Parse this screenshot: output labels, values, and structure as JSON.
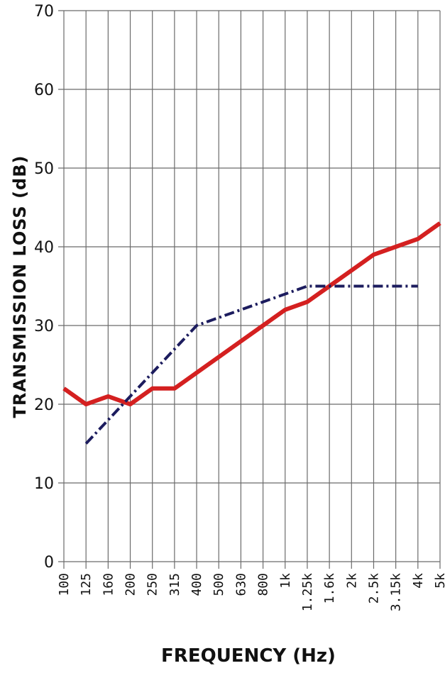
{
  "chart_data": {
    "type": "line",
    "xlabel": "FREQUENCY (Hz)",
    "ylabel": "TRANSMISSION LOSS (dB)",
    "ylim": [
      0,
      70
    ],
    "yticks": [
      "0",
      "10",
      "20",
      "30",
      "40",
      "50",
      "60",
      "70"
    ],
    "categories": [
      "100",
      "125",
      "160",
      "200",
      "250",
      "315",
      "400",
      "500",
      "630",
      "800",
      "1k",
      "1.25k",
      "1.6k",
      "2k",
      "2.5k",
      "3.15k",
      "4k",
      "5k"
    ],
    "grid": true,
    "series": [
      {
        "color": "#d42020",
        "style": "solid",
        "values": [
          22,
          20,
          21,
          20,
          22,
          22,
          24,
          26,
          28,
          30,
          32,
          33,
          35,
          37,
          39,
          40,
          41,
          43
        ]
      },
      {
        "color": "#1c1c5e",
        "style": "dash-dot",
        "values": [
          null,
          15,
          18,
          21,
          24,
          27,
          30,
          31,
          32,
          33,
          34,
          35,
          35,
          35,
          35,
          35,
          35,
          null
        ]
      }
    ]
  }
}
